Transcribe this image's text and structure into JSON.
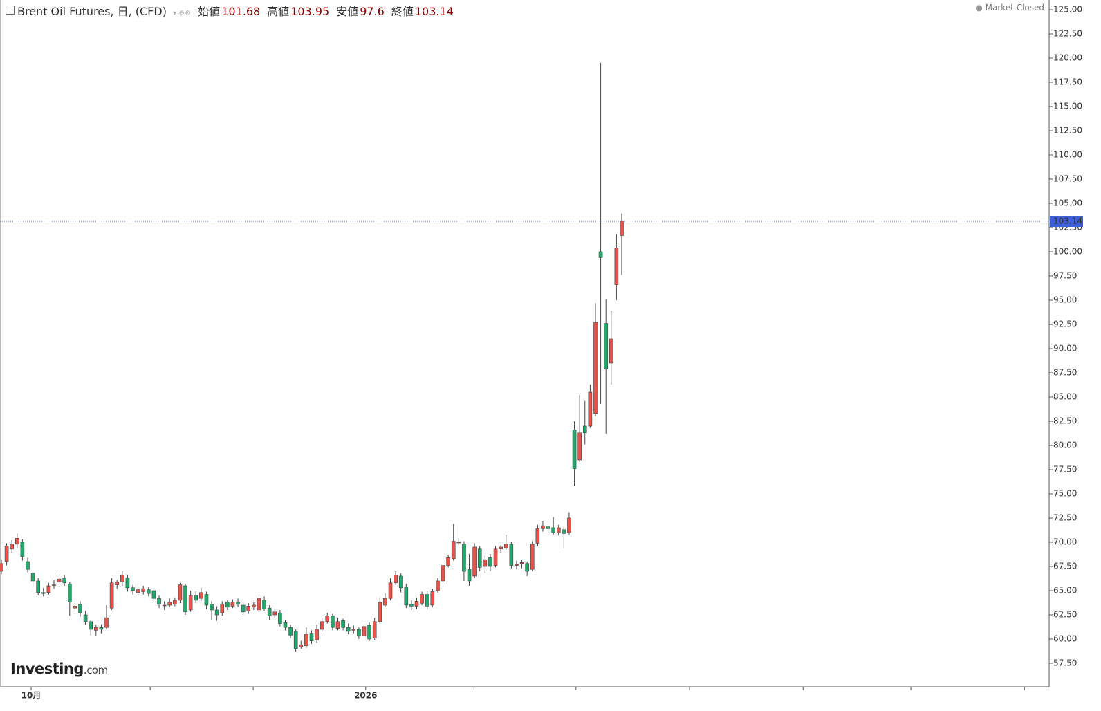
{
  "chart_data": {
    "type": "candlestick",
    "title": "Brent Oil Futures, 日, (CFD)",
    "ohlc_labels": [
      "始値",
      "高値",
      "安値",
      "終値"
    ],
    "status": "Market Closed",
    "watermark": {
      "brand": "Investing",
      "suffix": ".com"
    },
    "up_color": "#e5534b",
    "down_color": "#22a86a",
    "wick_color": "#444444",
    "price_line_color": "#3d5fd9",
    "ylim": [
      55.07,
      126
    ],
    "xlim": [
      -0.26,
      199.3
    ],
    "yticks": [
      {
        "value": 57.5,
        "label": "57.50"
      },
      {
        "value": 60,
        "label": "60.00"
      },
      {
        "value": 62.5,
        "label": "62.50"
      },
      {
        "value": 65,
        "label": "65.00"
      },
      {
        "value": 67.5,
        "label": "67.50"
      },
      {
        "value": 70,
        "label": "70.00"
      },
      {
        "value": 72.5,
        "label": "72.50"
      },
      {
        "value": 75,
        "label": "75.00"
      },
      {
        "value": 77.5,
        "label": "77.50"
      },
      {
        "value": 80,
        "label": "80.00"
      },
      {
        "value": 82.5,
        "label": "82.50"
      },
      {
        "value": 85,
        "label": "85.00"
      },
      {
        "value": 87.5,
        "label": "87.50"
      },
      {
        "value": 90,
        "label": "90.00"
      },
      {
        "value": 92.5,
        "label": "92.50"
      },
      {
        "value": 95,
        "label": "95.00"
      },
      {
        "value": 97.5,
        "label": "97.50"
      },
      {
        "value": 100,
        "label": "100.00"
      },
      {
        "value": 102.5,
        "label": "102.50"
      },
      {
        "value": 105,
        "label": "105.00"
      },
      {
        "value": 107.5,
        "label": "107.50"
      },
      {
        "value": 110,
        "label": "110.00"
      },
      {
        "value": 112.5,
        "label": "112.50"
      },
      {
        "value": 115,
        "label": "115.00"
      },
      {
        "value": 117.5,
        "label": "117.50"
      },
      {
        "value": 120,
        "label": "120.00"
      },
      {
        "value": 122.5,
        "label": "122.50"
      },
      {
        "value": 125,
        "label": "125.00"
      }
    ],
    "xticks": [
      {
        "value": 5.66,
        "label": "10月"
      },
      {
        "value": 28.3,
        "label": null
      },
      {
        "value": 47.9,
        "label": null
      },
      {
        "value": 69.3,
        "label": "2026"
      },
      {
        "value": 89.9,
        "label": null
      },
      {
        "value": 109.3,
        "label": null
      },
      {
        "value": 130.9,
        "label": null
      },
      {
        "value": 152.5,
        "label": null
      },
      {
        "value": 173.0,
        "label": null
      },
      {
        "value": 194.6,
        "label": null
      }
    ],
    "ohlc": [
      [
        67.0,
        68.2,
        66.7,
        67.8
      ],
      [
        68.0,
        69.9,
        67.6,
        69.6
      ],
      [
        69.3,
        70.2,
        68.9,
        69.8
      ],
      [
        69.8,
        70.9,
        69.4,
        70.4
      ],
      [
        70.0,
        70.3,
        68.1,
        68.5
      ],
      [
        68.0,
        68.4,
        66.9,
        67.2
      ],
      [
        66.8,
        67.0,
        65.4,
        66.0
      ],
      [
        66.0,
        66.3,
        64.5,
        64.8
      ],
      [
        64.8,
        65.3,
        64.4,
        64.7
      ],
      [
        64.8,
        65.8,
        64.6,
        65.5
      ],
      [
        65.6,
        66.1,
        65.2,
        65.6
      ],
      [
        65.9,
        66.7,
        65.6,
        66.2
      ],
      [
        66.3,
        66.6,
        65.5,
        65.8
      ],
      [
        65.7,
        65.9,
        62.4,
        63.8
      ],
      [
        63.2,
        63.9,
        62.8,
        63.4
      ],
      [
        63.6,
        63.9,
        62.3,
        62.7
      ],
      [
        62.5,
        62.9,
        61.5,
        61.8
      ],
      [
        61.8,
        62.0,
        60.4,
        61.0
      ],
      [
        60.9,
        61.5,
        60.3,
        61.2
      ],
      [
        61.2,
        61.5,
        60.6,
        61.0
      ],
      [
        61.2,
        63.5,
        61.0,
        62.2
      ],
      [
        63.2,
        66.3,
        63.0,
        65.8
      ],
      [
        65.6,
        66.1,
        65.2,
        65.9
      ],
      [
        65.9,
        67.0,
        65.5,
        66.6
      ],
      [
        66.3,
        66.6,
        64.9,
        65.3
      ],
      [
        65.3,
        65.6,
        64.6,
        65.0
      ],
      [
        64.8,
        65.4,
        64.5,
        65.1
      ],
      [
        64.9,
        65.5,
        64.6,
        65.2
      ],
      [
        65.1,
        65.4,
        64.4,
        64.7
      ],
      [
        65.0,
        65.3,
        63.8,
        64.2
      ],
      [
        64.2,
        64.5,
        63.2,
        63.6
      ],
      [
        63.5,
        63.9,
        63.0,
        63.5
      ],
      [
        63.5,
        64.2,
        63.3,
        63.8
      ],
      [
        63.6,
        64.3,
        63.4,
        64.0
      ],
      [
        64.0,
        65.8,
        63.7,
        65.6
      ],
      [
        65.5,
        65.7,
        62.5,
        62.8
      ],
      [
        63.0,
        65.0,
        62.8,
        64.5
      ],
      [
        64.5,
        64.9,
        63.7,
        64.0
      ],
      [
        64.2,
        65.3,
        63.9,
        64.8
      ],
      [
        64.6,
        64.9,
        63.1,
        63.5
      ],
      [
        63.6,
        63.9,
        62.0,
        63.0
      ],
      [
        63.0,
        63.4,
        61.9,
        62.5
      ],
      [
        62.7,
        63.9,
        62.4,
        63.6
      ],
      [
        63.8,
        64.0,
        63.0,
        63.3
      ],
      [
        63.4,
        64.1,
        63.2,
        63.8
      ],
      [
        63.8,
        64.2,
        63.3,
        63.6
      ],
      [
        63.5,
        63.8,
        62.5,
        62.8
      ],
      [
        62.9,
        63.7,
        62.6,
        63.4
      ],
      [
        63.3,
        63.8,
        63.0,
        63.5
      ],
      [
        63.0,
        64.6,
        62.8,
        64.2
      ],
      [
        64.0,
        64.4,
        62.9,
        63.1
      ],
      [
        63.2,
        63.5,
        62.0,
        62.4
      ],
      [
        62.5,
        63.1,
        62.2,
        62.8
      ],
      [
        62.7,
        63.0,
        61.3,
        61.6
      ],
      [
        61.7,
        62.0,
        60.9,
        61.2
      ],
      [
        61.2,
        61.5,
        60.1,
        60.4
      ],
      [
        60.8,
        61.0,
        58.7,
        59.0
      ],
      [
        59.2,
        59.8,
        59.0,
        59.4
      ],
      [
        59.3,
        61.2,
        59.1,
        60.5
      ],
      [
        60.6,
        60.9,
        59.5,
        59.8
      ],
      [
        59.9,
        61.5,
        59.6,
        61.0
      ],
      [
        61.0,
        62.2,
        60.8,
        61.8
      ],
      [
        61.8,
        62.7,
        61.6,
        62.4
      ],
      [
        62.4,
        62.6,
        60.9,
        61.2
      ],
      [
        61.1,
        62.2,
        60.9,
        61.8
      ],
      [
        61.9,
        62.1,
        60.9,
        61.2
      ],
      [
        61.2,
        61.6,
        60.5,
        60.8
      ],
      [
        60.9,
        61.4,
        60.6,
        61.0
      ],
      [
        61.0,
        61.2,
        60.0,
        60.3
      ],
      [
        60.3,
        61.6,
        60.1,
        61.3
      ],
      [
        61.4,
        61.7,
        59.8,
        60.0
      ],
      [
        60.1,
        62.2,
        59.9,
        61.8
      ],
      [
        61.8,
        64.3,
        61.6,
        63.8
      ],
      [
        63.5,
        64.7,
        63.3,
        64.2
      ],
      [
        64.2,
        66.3,
        64.0,
        65.8
      ],
      [
        65.8,
        67.0,
        65.6,
        66.6
      ],
      [
        66.5,
        66.8,
        64.8,
        65.3
      ],
      [
        65.4,
        65.7,
        63.2,
        63.5
      ],
      [
        63.6,
        64.0,
        63.0,
        63.4
      ],
      [
        63.4,
        64.3,
        63.1,
        63.9
      ],
      [
        63.7,
        64.9,
        63.5,
        64.6
      ],
      [
        64.6,
        64.9,
        63.1,
        63.4
      ],
      [
        63.5,
        65.2,
        63.3,
        64.9
      ],
      [
        65.0,
        66.3,
        64.8,
        66.0
      ],
      [
        66.0,
        68.0,
        65.8,
        67.6
      ],
      [
        67.6,
        68.7,
        67.4,
        68.4
      ],
      [
        68.3,
        71.9,
        68.1,
        70.1
      ],
      [
        70.0,
        70.4,
        69.7,
        70.0
      ],
      [
        69.8,
        70.1,
        66.0,
        67.0
      ],
      [
        67.2,
        68.8,
        65.5,
        66.0
      ],
      [
        66.5,
        69.9,
        66.3,
        69.5
      ],
      [
        69.3,
        69.6,
        67.0,
        67.4
      ],
      [
        67.5,
        68.6,
        66.8,
        68.2
      ],
      [
        68.4,
        68.8,
        67.0,
        67.5
      ],
      [
        67.6,
        69.6,
        67.4,
        69.3
      ],
      [
        69.3,
        69.7,
        68.9,
        69.5
      ],
      [
        69.4,
        70.8,
        69.2,
        69.8
      ],
      [
        69.8,
        70.0,
        67.3,
        67.6
      ],
      [
        67.6,
        68.1,
        67.2,
        67.7
      ],
      [
        67.8,
        68.2,
        67.3,
        67.9
      ],
      [
        67.8,
        68.0,
        66.5,
        67.0
      ],
      [
        67.2,
        70.1,
        67.0,
        69.8
      ],
      [
        69.9,
        71.8,
        69.6,
        71.4
      ],
      [
        71.4,
        72.2,
        71.1,
        71.7
      ],
      [
        71.6,
        72.3,
        71.0,
        71.4
      ],
      [
        71.5,
        72.6,
        70.8,
        71.0
      ],
      [
        71.0,
        71.8,
        70.7,
        71.5
      ],
      [
        71.3,
        71.6,
        69.4,
        70.9
      ],
      [
        71.0,
        73.1,
        70.8,
        72.5
      ],
      [
        81.6,
        82.5,
        75.8,
        77.6
      ],
      [
        78.5,
        85.2,
        78.3,
        81.3
      ],
      [
        82.0,
        84.6,
        80.1,
        81.3
      ],
      [
        82.0,
        86.3,
        81.8,
        85.5
      ],
      [
        83.3,
        94.7,
        83.0,
        92.7
      ],
      [
        100.0,
        119.5,
        84.3,
        99.4
      ],
      [
        92.6,
        95.1,
        81.2,
        87.9
      ],
      [
        88.5,
        93.9,
        86.3,
        91.0
      ],
      [
        96.6,
        101.8,
        95.0,
        100.4
      ],
      [
        101.68,
        103.95,
        97.6,
        103.14
      ]
    ]
  }
}
